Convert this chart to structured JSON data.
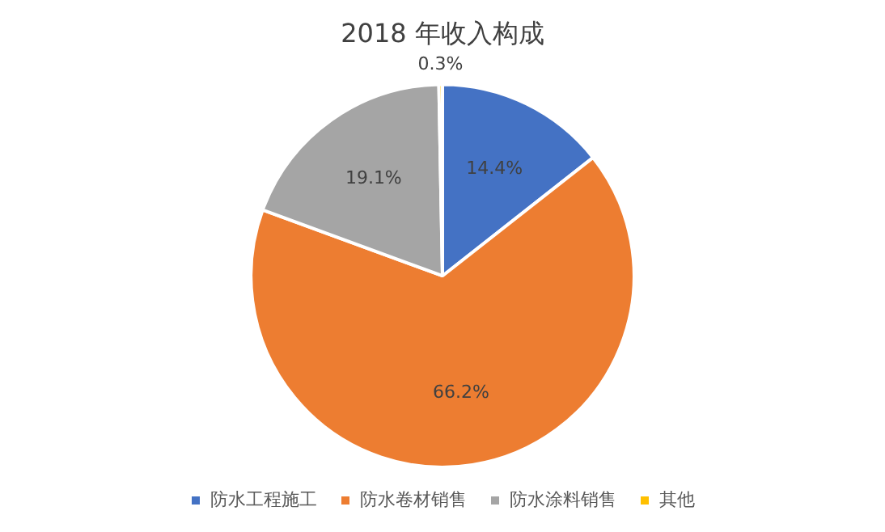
{
  "chart_data": {
    "type": "pie",
    "title": "2018 年收入构成",
    "categories": [
      "防水工程施工",
      "防水卷材销售",
      "防水涂料销售",
      "其他"
    ],
    "values": [
      14.4,
      66.2,
      19.1,
      0.3
    ],
    "colors": [
      "#4472c4",
      "#ed7d31",
      "#a5a5a5",
      "#ffc000"
    ],
    "value_labels": [
      "14.4%",
      "66.2%",
      "19.1%",
      "0.3%"
    ],
    "legend": "bottom"
  }
}
